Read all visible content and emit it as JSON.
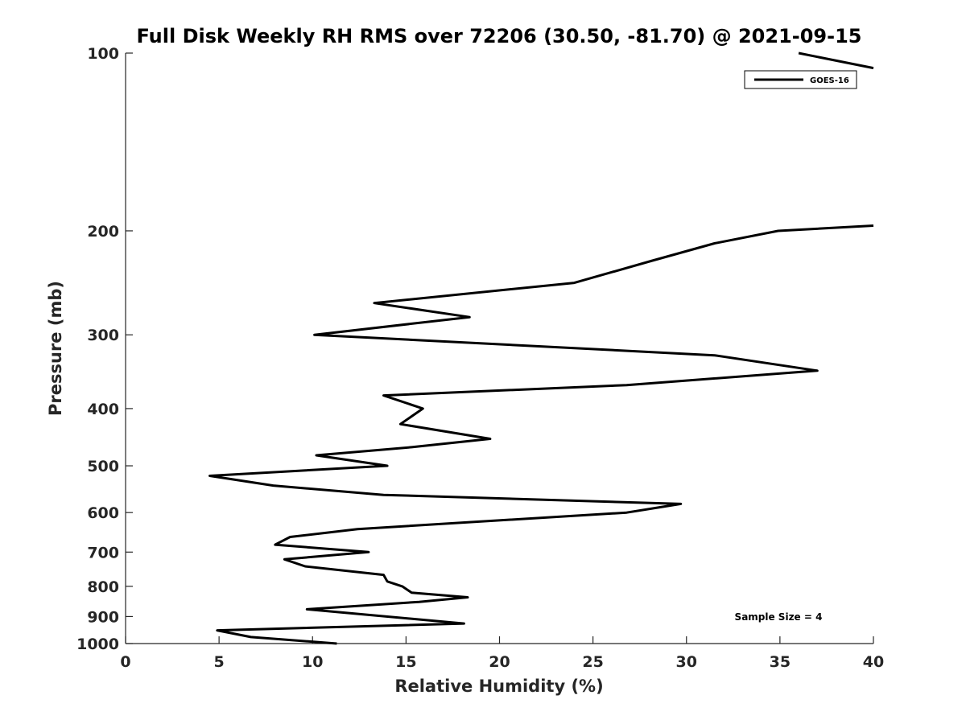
{
  "chart_data": {
    "type": "line",
    "title": "Full Disk Weekly RH RMS over 72206 (30.50, -81.70) @ 2021-09-15",
    "xlabel": "Relative Humidity (%)",
    "ylabel": "Pressure (mb)",
    "xlim": [
      0,
      40
    ],
    "ylim": [
      1000,
      100
    ],
    "yscale": "log",
    "x_ticks": [
      0,
      5,
      10,
      15,
      20,
      25,
      30,
      35,
      40
    ],
    "y_ticks": [
      100,
      200,
      300,
      400,
      500,
      600,
      700,
      800,
      900,
      1000
    ],
    "grid": false,
    "legend": {
      "placement": "top-right",
      "entries": [
        "GOES-16"
      ]
    },
    "annotations": [
      {
        "text": "Sample Size = 4",
        "placement": "bottom-right"
      }
    ],
    "series": [
      {
        "name": "GOES-16",
        "color": "#000000",
        "points": [
          {
            "x": 11.3,
            "y": 1000
          },
          {
            "x": 6.7,
            "y": 975
          },
          {
            "x": 4.9,
            "y": 950
          },
          {
            "x": 18.1,
            "y": 925
          },
          {
            "x": 9.7,
            "y": 875
          },
          {
            "x": 15.7,
            "y": 850
          },
          {
            "x": 18.3,
            "y": 835
          },
          {
            "x": 15.3,
            "y": 820
          },
          {
            "x": 14.8,
            "y": 800
          },
          {
            "x": 14.0,
            "y": 785
          },
          {
            "x": 13.8,
            "y": 765
          },
          {
            "x": 9.6,
            "y": 740
          },
          {
            "x": 8.5,
            "y": 720
          },
          {
            "x": 13.0,
            "y": 700
          },
          {
            "x": 8.0,
            "y": 680
          },
          {
            "x": 8.8,
            "y": 660
          },
          {
            "x": 12.4,
            "y": 640
          },
          {
            "x": 26.8,
            "y": 600
          },
          {
            "x": 29.7,
            "y": 580
          },
          {
            "x": 13.8,
            "y": 560
          },
          {
            "x": 7.9,
            "y": 540
          },
          {
            "x": 4.5,
            "y": 520
          },
          {
            "x": 14.0,
            "y": 500
          },
          {
            "x": 10.2,
            "y": 480
          },
          {
            "x": 15.3,
            "y": 465
          },
          {
            "x": 19.5,
            "y": 450
          },
          {
            "x": 14.7,
            "y": 425
          },
          {
            "x": 15.9,
            "y": 400
          },
          {
            "x": 13.8,
            "y": 380
          },
          {
            "x": 26.8,
            "y": 365
          },
          {
            "x": 37.0,
            "y": 345
          },
          {
            "x": 31.5,
            "y": 325
          },
          {
            "x": 10.1,
            "y": 300
          },
          {
            "x": 18.4,
            "y": 280
          },
          {
            "x": 13.3,
            "y": 265
          },
          {
            "x": 24.0,
            "y": 245
          },
          {
            "x": 28.1,
            "y": 225
          },
          {
            "x": 31.5,
            "y": 210
          },
          {
            "x": 34.9,
            "y": 200
          },
          {
            "x": 40.0,
            "y": 196
          }
        ],
        "upper_segment": [
          {
            "x": 36.0,
            "y": 100
          },
          {
            "x": 40.0,
            "y": 106
          }
        ]
      }
    ]
  }
}
